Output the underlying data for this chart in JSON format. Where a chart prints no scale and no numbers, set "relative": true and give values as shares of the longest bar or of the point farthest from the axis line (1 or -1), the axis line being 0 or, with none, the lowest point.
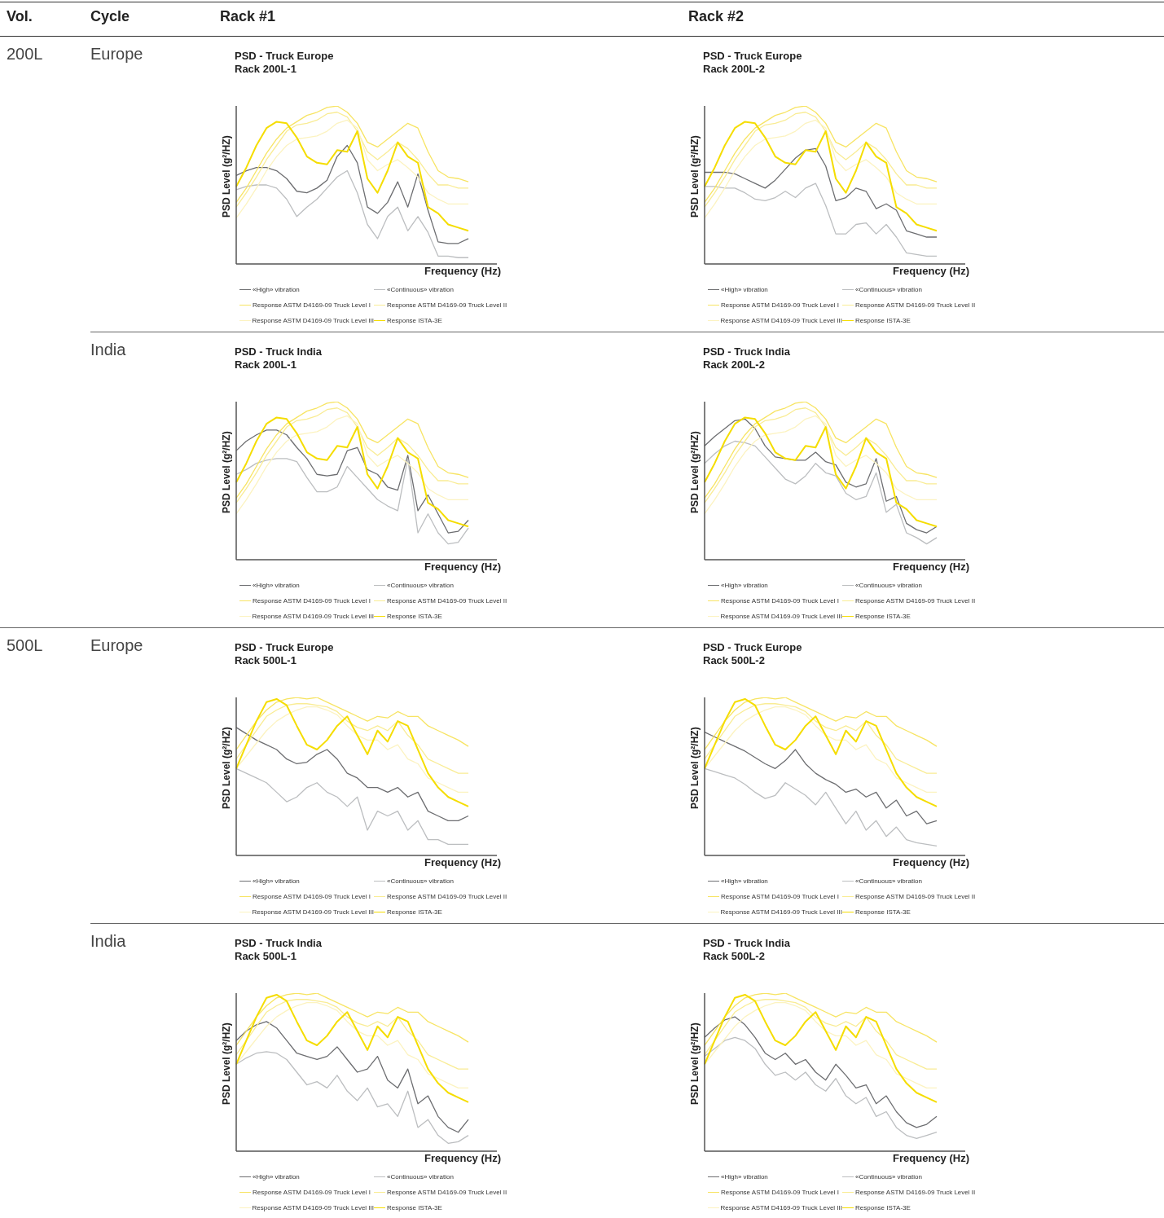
{
  "chart_data": [
    {
      "type": "other",
      "annotations": [
        "Vol.",
        "Cycle",
        "Rack #1",
        "Rack #2",
        "200L",
        "Europe",
        "India",
        "500L",
        "Europe",
        "India"
      ]
    },
    {
      "type": "line",
      "title": "PSD - Truck Europe",
      "subtitle": "Rack 200L-1",
      "xlabel": "Frequency (Hz)",
      "ylabel": "PSD Level (g²/HZ)",
      "relative": true,
      "legend": "bottom",
      "categories": [
        null,
        null,
        null,
        null,
        null,
        null,
        null,
        null,
        null,
        null,
        null,
        null,
        null,
        null,
        null,
        null,
        null,
        null,
        null,
        null,
        null,
        null,
        null,
        null
      ],
      "series": [
        {
          "name": "«High» vibration",
          "color": "#6d6e71",
          "values": [
            0.56,
            0.59,
            0.61,
            0.61,
            0.59,
            0.54,
            0.46,
            0.45,
            0.48,
            0.53,
            0.68,
            0.75,
            0.64,
            0.36,
            0.32,
            0.39,
            0.52,
            0.36,
            0.57,
            0.34,
            0.14,
            0.13,
            0.13,
            0.16
          ]
        },
        {
          "name": "«Continuous» vibration",
          "color": "#bcbec0",
          "values": [
            0.47,
            0.49,
            0.5,
            0.5,
            0.48,
            0.41,
            0.3,
            0.36,
            0.41,
            0.48,
            0.55,
            0.59,
            0.45,
            0.25,
            0.16,
            0.3,
            0.36,
            0.21,
            0.3,
            0.2,
            0.05,
            0.05,
            0.04,
            0.04
          ]
        },
        {
          "name": "Response ASTM D4169-09 Truck Level I",
          "color": "#f7e463",
          "values": [
            0.39,
            0.48,
            0.59,
            0.7,
            0.79,
            0.86,
            0.9,
            0.94,
            0.96,
            0.99,
            1,
            0.96,
            0.89,
            0.77,
            0.74,
            0.79,
            0.84,
            0.89,
            0.86,
            0.71,
            0.59,
            0.55,
            0.54,
            0.52
          ]
        },
        {
          "name": "Response ASTM D4169-09 Truck Level II",
          "color": "#f9ec94",
          "values": [
            0.36,
            0.45,
            0.55,
            0.66,
            0.75,
            0.84,
            0.88,
            0.89,
            0.91,
            0.95,
            0.96,
            0.93,
            0.84,
            0.71,
            0.66,
            0.71,
            0.77,
            0.73,
            0.66,
            0.57,
            0.5,
            0.5,
            0.48,
            0.48
          ]
        },
        {
          "name": "Response ASTM D4169-09 Truck Level III",
          "color": "#fcf3c0",
          "values": [
            0.29,
            0.38,
            0.48,
            0.59,
            0.68,
            0.75,
            0.79,
            0.8,
            0.81,
            0.84,
            0.89,
            0.91,
            0.86,
            0.66,
            0.59,
            0.63,
            0.66,
            0.61,
            0.55,
            0.45,
            0.41,
            0.38,
            0.38,
            0.38
          ]
        },
        {
          "name": "Response ISTA-3E",
          "color": "#f5dd00",
          "values": [
            0.49,
            0.61,
            0.75,
            0.86,
            0.9,
            0.89,
            0.8,
            0.68,
            0.64,
            0.63,
            0.72,
            0.71,
            0.84,
            0.54,
            0.45,
            0.59,
            0.77,
            0.68,
            0.64,
            0.36,
            0.32,
            0.25,
            0.23,
            0.21
          ]
        }
      ]
    },
    {
      "type": "line",
      "title": "PSD - Truck Europe",
      "subtitle": "Rack 200L-2",
      "xlabel": "Frequency (Hz)",
      "ylabel": "PSD Level (g²/HZ)",
      "relative": true,
      "legend": "bottom",
      "categories": [
        null,
        null,
        null,
        null,
        null,
        null,
        null,
        null,
        null,
        null,
        null,
        null,
        null,
        null,
        null,
        null,
        null,
        null,
        null,
        null,
        null,
        null,
        null,
        null
      ],
      "series": [
        {
          "name": "«High» vibration",
          "color": "#6d6e71",
          "values": [
            0.58,
            0.58,
            0.58,
            0.57,
            0.54,
            0.51,
            0.48,
            0.53,
            0.6,
            0.67,
            0.72,
            0.73,
            0.62,
            0.4,
            0.42,
            0.48,
            0.46,
            0.35,
            0.38,
            0.34,
            0.21,
            0.19,
            0.17,
            0.17
          ]
        },
        {
          "name": "«Continuous» vibration",
          "color": "#bcbec0",
          "values": [
            0.49,
            0.49,
            0.48,
            0.48,
            0.45,
            0.41,
            0.4,
            0.42,
            0.46,
            0.42,
            0.48,
            0.51,
            0.37,
            0.19,
            0.19,
            0.25,
            0.26,
            0.19,
            0.25,
            0.17,
            0.07,
            0.06,
            0.05,
            0.05
          ]
        },
        {
          "name": "Response ASTM D4169-09 Truck Level I",
          "color": "#f7e463",
          "values": [
            0.39,
            0.48,
            0.59,
            0.7,
            0.79,
            0.86,
            0.9,
            0.94,
            0.96,
            0.99,
            1,
            0.96,
            0.89,
            0.77,
            0.74,
            0.79,
            0.84,
            0.89,
            0.86,
            0.71,
            0.59,
            0.55,
            0.54,
            0.52
          ]
        },
        {
          "name": "Response ASTM D4169-09 Truck Level II",
          "color": "#f9ec94",
          "values": [
            0.36,
            0.45,
            0.55,
            0.66,
            0.75,
            0.84,
            0.88,
            0.89,
            0.91,
            0.95,
            0.96,
            0.93,
            0.84,
            0.71,
            0.66,
            0.71,
            0.77,
            0.73,
            0.66,
            0.57,
            0.5,
            0.5,
            0.48,
            0.48
          ]
        },
        {
          "name": "Response ASTM D4169-09 Truck Level III",
          "color": "#fcf3c0",
          "values": [
            0.29,
            0.38,
            0.48,
            0.59,
            0.68,
            0.75,
            0.79,
            0.8,
            0.81,
            0.84,
            0.89,
            0.91,
            0.86,
            0.66,
            0.59,
            0.63,
            0.66,
            0.61,
            0.55,
            0.45,
            0.41,
            0.38,
            0.38,
            0.38
          ]
        },
        {
          "name": "Response ISTA-3E",
          "color": "#f5dd00",
          "values": [
            0.49,
            0.61,
            0.75,
            0.86,
            0.9,
            0.89,
            0.8,
            0.68,
            0.64,
            0.63,
            0.72,
            0.71,
            0.84,
            0.54,
            0.45,
            0.59,
            0.77,
            0.68,
            0.64,
            0.36,
            0.32,
            0.25,
            0.23,
            0.21
          ]
        }
      ]
    },
    {
      "type": "line",
      "title": "PSD - Truck India",
      "subtitle": "Rack 200L-1",
      "xlabel": "Frequency (Hz)",
      "ylabel": "PSD Level (g²/HZ)",
      "relative": true,
      "legend": "bottom",
      "categories": [
        null,
        null,
        null,
        null,
        null,
        null,
        null,
        null,
        null,
        null,
        null,
        null,
        null,
        null,
        null,
        null,
        null,
        null,
        null,
        null,
        null,
        null,
        null,
        null
      ],
      "series": [
        {
          "name": "«High» vibration",
          "color": "#6d6e71",
          "values": [
            0.69,
            0.75,
            0.79,
            0.82,
            0.82,
            0.79,
            0.71,
            0.64,
            0.54,
            0.53,
            0.54,
            0.69,
            0.71,
            0.57,
            0.54,
            0.46,
            0.44,
            0.66,
            0.31,
            0.41,
            0.29,
            0.17,
            0.18,
            0.25
          ]
        },
        {
          "name": "«Continuous» vibration",
          "color": "#bcbec0",
          "values": [
            0.54,
            0.57,
            0.61,
            0.63,
            0.64,
            0.64,
            0.62,
            0.52,
            0.43,
            0.43,
            0.46,
            0.59,
            0.52,
            0.45,
            0.38,
            0.34,
            0.31,
            0.64,
            0.17,
            0.29,
            0.17,
            0.1,
            0.11,
            0.2
          ]
        },
        {
          "name": "Response ASTM D4169-09 Truck Level I",
          "color": "#f7e463",
          "values": [
            0.39,
            0.48,
            0.59,
            0.7,
            0.79,
            0.86,
            0.9,
            0.94,
            0.96,
            0.99,
            1,
            0.96,
            0.89,
            0.77,
            0.74,
            0.79,
            0.84,
            0.89,
            0.86,
            0.71,
            0.59,
            0.55,
            0.54,
            0.52
          ]
        },
        {
          "name": "Response ASTM D4169-09 Truck Level II",
          "color": "#f9ec94",
          "values": [
            0.36,
            0.45,
            0.55,
            0.66,
            0.75,
            0.84,
            0.88,
            0.89,
            0.91,
            0.95,
            0.96,
            0.93,
            0.84,
            0.71,
            0.66,
            0.71,
            0.77,
            0.73,
            0.66,
            0.57,
            0.5,
            0.5,
            0.48,
            0.48
          ]
        },
        {
          "name": "Response ASTM D4169-09 Truck Level III",
          "color": "#fcf3c0",
          "values": [
            0.29,
            0.38,
            0.48,
            0.59,
            0.68,
            0.75,
            0.79,
            0.8,
            0.81,
            0.84,
            0.89,
            0.91,
            0.86,
            0.66,
            0.59,
            0.63,
            0.66,
            0.61,
            0.55,
            0.45,
            0.41,
            0.38,
            0.38,
            0.38
          ]
        },
        {
          "name": "Response ISTA-3E",
          "color": "#f5dd00",
          "values": [
            0.49,
            0.61,
            0.75,
            0.86,
            0.9,
            0.89,
            0.8,
            0.68,
            0.64,
            0.63,
            0.72,
            0.71,
            0.84,
            0.54,
            0.45,
            0.59,
            0.77,
            0.68,
            0.64,
            0.36,
            0.32,
            0.25,
            0.23,
            0.21
          ]
        }
      ]
    },
    {
      "type": "line",
      "title": "PSD - Truck India",
      "subtitle": "Rack 200L-2",
      "xlabel": "Frequency (Hz)",
      "ylabel": "PSD Level (g²/HZ)",
      "relative": true,
      "legend": "bottom",
      "categories": [
        null,
        null,
        null,
        null,
        null,
        null,
        null,
        null,
        null,
        null,
        null,
        null,
        null,
        null,
        null,
        null,
        null,
        null,
        null,
        null,
        null,
        null,
        null,
        null
      ],
      "series": [
        {
          "name": "«High» vibration",
          "color": "#6d6e71",
          "values": [
            0.72,
            0.78,
            0.83,
            0.88,
            0.89,
            0.83,
            0.72,
            0.65,
            0.64,
            0.63,
            0.63,
            0.68,
            0.62,
            0.6,
            0.49,
            0.46,
            0.48,
            0.64,
            0.37,
            0.4,
            0.23,
            0.19,
            0.17,
            0.21
          ]
        },
        {
          "name": "«Continuous» vibration",
          "color": "#bcbec0",
          "values": [
            0.61,
            0.67,
            0.72,
            0.75,
            0.74,
            0.72,
            0.65,
            0.58,
            0.51,
            0.48,
            0.53,
            0.61,
            0.55,
            0.53,
            0.42,
            0.38,
            0.4,
            0.55,
            0.3,
            0.35,
            0.17,
            0.14,
            0.1,
            0.14
          ]
        },
        {
          "name": "Response ASTM D4169-09 Truck Level I",
          "color": "#f7e463",
          "values": [
            0.39,
            0.48,
            0.59,
            0.7,
            0.79,
            0.86,
            0.9,
            0.94,
            0.96,
            0.99,
            1,
            0.96,
            0.89,
            0.77,
            0.74,
            0.79,
            0.84,
            0.89,
            0.86,
            0.71,
            0.59,
            0.55,
            0.54,
            0.52
          ]
        },
        {
          "name": "Response ASTM D4169-09 Truck Level II",
          "color": "#f9ec94",
          "values": [
            0.36,
            0.45,
            0.55,
            0.66,
            0.75,
            0.84,
            0.88,
            0.89,
            0.91,
            0.95,
            0.96,
            0.93,
            0.84,
            0.71,
            0.66,
            0.71,
            0.77,
            0.73,
            0.66,
            0.57,
            0.5,
            0.5,
            0.48,
            0.48
          ]
        },
        {
          "name": "Response ASTM D4169-09 Truck Level III",
          "color": "#fcf3c0",
          "values": [
            0.29,
            0.38,
            0.48,
            0.59,
            0.68,
            0.75,
            0.79,
            0.8,
            0.81,
            0.84,
            0.89,
            0.91,
            0.86,
            0.66,
            0.59,
            0.63,
            0.66,
            0.61,
            0.55,
            0.45,
            0.41,
            0.38,
            0.38,
            0.38
          ]
        },
        {
          "name": "Response ISTA-3E",
          "color": "#f5dd00",
          "values": [
            0.49,
            0.61,
            0.75,
            0.86,
            0.9,
            0.89,
            0.8,
            0.68,
            0.64,
            0.63,
            0.72,
            0.71,
            0.84,
            0.54,
            0.45,
            0.59,
            0.77,
            0.68,
            0.64,
            0.36,
            0.32,
            0.25,
            0.23,
            0.21
          ]
        }
      ]
    },
    {
      "type": "line",
      "title": "PSD - Truck Europe",
      "subtitle": "Rack 500L-1",
      "xlabel": "Frequency (Hz)",
      "ylabel": "PSD Level (g²/HZ)",
      "relative": true,
      "legend": "bottom",
      "categories": [
        null,
        null,
        null,
        null,
        null,
        null,
        null,
        null,
        null,
        null,
        null,
        null,
        null,
        null,
        null,
        null,
        null,
        null,
        null,
        null,
        null,
        null,
        null,
        null
      ],
      "series": [
        {
          "name": "«High» vibration",
          "color": "#6d6e71",
          "values": [
            0.81,
            0.77,
            0.73,
            0.7,
            0.67,
            0.61,
            0.58,
            0.59,
            0.64,
            0.67,
            0.61,
            0.52,
            0.49,
            0.43,
            0.43,
            0.4,
            0.43,
            0.37,
            0.4,
            0.28,
            0.25,
            0.22,
            0.22,
            0.25
          ]
        },
        {
          "name": "«Continuous» vibration",
          "color": "#bcbec0",
          "values": [
            0.55,
            0.52,
            0.49,
            0.46,
            0.4,
            0.34,
            0.37,
            0.43,
            0.46,
            0.4,
            0.37,
            0.31,
            0.37,
            0.16,
            0.28,
            0.25,
            0.28,
            0.16,
            0.22,
            0.1,
            0.1,
            0.07,
            0.07,
            0.07
          ]
        },
        {
          "name": "Response ASTM D4169-09 Truck Level I",
          "color": "#f7e463",
          "values": [
            0.67,
            0.76,
            0.85,
            0.92,
            0.97,
            0.99,
            1,
            0.99,
            1,
            0.97,
            0.94,
            0.91,
            0.88,
            0.85,
            0.88,
            0.87,
            0.91,
            0.88,
            0.88,
            0.82,
            0.79,
            0.76,
            0.73,
            0.69
          ]
        },
        {
          "name": "Response ASTM D4169-09 Truck Level II",
          "color": "#f9ec94",
          "values": [
            0.61,
            0.7,
            0.79,
            0.88,
            0.92,
            0.95,
            0.96,
            0.96,
            0.95,
            0.94,
            0.91,
            0.85,
            0.81,
            0.79,
            0.82,
            0.79,
            0.85,
            0.76,
            0.7,
            0.61,
            0.58,
            0.55,
            0.52,
            0.52
          ]
        },
        {
          "name": "Response ASTM D4169-09 Truck Level III",
          "color": "#fcf3c0",
          "values": [
            0.55,
            0.63,
            0.71,
            0.79,
            0.85,
            0.89,
            0.92,
            0.94,
            0.94,
            0.92,
            0.89,
            0.82,
            0.76,
            0.73,
            0.73,
            0.67,
            0.7,
            0.61,
            0.58,
            0.49,
            0.46,
            0.43,
            0.4,
            0.4
          ]
        },
        {
          "name": "Response ISTA-3E",
          "color": "#f5dd00",
          "values": [
            0.55,
            0.7,
            0.85,
            0.97,
            0.99,
            0.95,
            0.82,
            0.7,
            0.67,
            0.73,
            0.82,
            0.88,
            0.76,
            0.64,
            0.79,
            0.72,
            0.85,
            0.82,
            0.67,
            0.52,
            0.43,
            0.37,
            0.34,
            0.31
          ]
        }
      ]
    },
    {
      "type": "line",
      "title": "PSD - Truck Europe",
      "subtitle": "Rack 500L-2",
      "xlabel": "Frequency (Hz)",
      "ylabel": "PSD Level (g²/HZ)",
      "relative": true,
      "legend": "bottom",
      "categories": [
        null,
        null,
        null,
        null,
        null,
        null,
        null,
        null,
        null,
        null,
        null,
        null,
        null,
        null,
        null,
        null,
        null,
        null,
        null,
        null,
        null,
        null,
        null,
        null
      ],
      "series": [
        {
          "name": "«High» vibration",
          "color": "#6d6e71",
          "values": [
            0.78,
            0.75,
            0.72,
            0.69,
            0.66,
            0.62,
            0.58,
            0.55,
            0.6,
            0.67,
            0.58,
            0.52,
            0.48,
            0.45,
            0.4,
            0.42,
            0.37,
            0.4,
            0.3,
            0.35,
            0.25,
            0.28,
            0.2,
            0.22
          ]
        },
        {
          "name": "«Continuous» vibration",
          "color": "#bcbec0",
          "values": [
            0.55,
            0.53,
            0.51,
            0.49,
            0.45,
            0.4,
            0.36,
            0.38,
            0.46,
            0.42,
            0.38,
            0.32,
            0.4,
            0.3,
            0.2,
            0.28,
            0.16,
            0.22,
            0.12,
            0.18,
            0.1,
            0.08,
            0.07,
            0.06
          ]
        },
        {
          "name": "Response ASTM D4169-09 Truck Level I",
          "color": "#f7e463",
          "values": [
            0.67,
            0.76,
            0.85,
            0.92,
            0.97,
            0.99,
            1,
            0.99,
            1,
            0.97,
            0.94,
            0.91,
            0.88,
            0.85,
            0.88,
            0.87,
            0.91,
            0.88,
            0.88,
            0.82,
            0.79,
            0.76,
            0.73,
            0.69
          ]
        },
        {
          "name": "Response ASTM D4169-09 Truck Level II",
          "color": "#f9ec94",
          "values": [
            0.61,
            0.7,
            0.79,
            0.88,
            0.92,
            0.95,
            0.96,
            0.96,
            0.95,
            0.94,
            0.91,
            0.85,
            0.81,
            0.79,
            0.82,
            0.79,
            0.85,
            0.76,
            0.7,
            0.61,
            0.58,
            0.55,
            0.52,
            0.52
          ]
        },
        {
          "name": "Response ASTM D4169-09 Truck Level III",
          "color": "#fcf3c0",
          "values": [
            0.55,
            0.63,
            0.71,
            0.79,
            0.85,
            0.89,
            0.92,
            0.94,
            0.94,
            0.92,
            0.89,
            0.82,
            0.76,
            0.73,
            0.73,
            0.67,
            0.7,
            0.61,
            0.58,
            0.49,
            0.46,
            0.43,
            0.4,
            0.4
          ]
        },
        {
          "name": "Response ISTA-3E",
          "color": "#f5dd00",
          "values": [
            0.55,
            0.7,
            0.85,
            0.97,
            0.99,
            0.95,
            0.82,
            0.7,
            0.67,
            0.73,
            0.82,
            0.88,
            0.76,
            0.64,
            0.79,
            0.72,
            0.85,
            0.82,
            0.67,
            0.52,
            0.43,
            0.37,
            0.34,
            0.31
          ]
        }
      ]
    },
    {
      "type": "line",
      "title": "PSD - Truck India",
      "subtitle": "Rack 500L-1",
      "xlabel": "Frequency (Hz)",
      "ylabel": "PSD Level (g²/HZ)",
      "relative": true,
      "legend": "bottom",
      "categories": [
        null,
        null,
        null,
        null,
        null,
        null,
        null,
        null,
        null,
        null,
        null,
        null,
        null,
        null,
        null,
        null,
        null,
        null,
        null,
        null,
        null,
        null,
        null,
        null
      ],
      "series": [
        {
          "name": "«High» vibration",
          "color": "#6d6e71",
          "values": [
            0.7,
            0.76,
            0.8,
            0.82,
            0.78,
            0.7,
            0.62,
            0.6,
            0.58,
            0.6,
            0.66,
            0.58,
            0.5,
            0.52,
            0.6,
            0.45,
            0.4,
            0.52,
            0.3,
            0.35,
            0.22,
            0.15,
            0.12,
            0.2
          ]
        },
        {
          "name": "«Continuous» vibration",
          "color": "#bcbec0",
          "values": [
            0.55,
            0.59,
            0.62,
            0.63,
            0.62,
            0.58,
            0.5,
            0.42,
            0.44,
            0.4,
            0.48,
            0.38,
            0.32,
            0.4,
            0.28,
            0.3,
            0.22,
            0.38,
            0.15,
            0.2,
            0.1,
            0.05,
            0.06,
            0.1
          ]
        },
        {
          "name": "Response ASTM D4169-09 Truck Level I",
          "color": "#f7e463",
          "values": [
            0.67,
            0.76,
            0.85,
            0.92,
            0.97,
            0.99,
            1,
            0.99,
            1,
            0.97,
            0.94,
            0.91,
            0.88,
            0.85,
            0.88,
            0.87,
            0.91,
            0.88,
            0.88,
            0.82,
            0.79,
            0.76,
            0.73,
            0.69
          ]
        },
        {
          "name": "Response ASTM D4169-09 Truck Level II",
          "color": "#f9ec94",
          "values": [
            0.61,
            0.7,
            0.79,
            0.88,
            0.92,
            0.95,
            0.96,
            0.96,
            0.95,
            0.94,
            0.91,
            0.85,
            0.81,
            0.79,
            0.82,
            0.79,
            0.85,
            0.76,
            0.7,
            0.61,
            0.58,
            0.55,
            0.52,
            0.52
          ]
        },
        {
          "name": "Response ASTM D4169-09 Truck Level III",
          "color": "#fcf3c0",
          "values": [
            0.55,
            0.63,
            0.71,
            0.79,
            0.85,
            0.89,
            0.92,
            0.94,
            0.94,
            0.92,
            0.89,
            0.82,
            0.76,
            0.73,
            0.73,
            0.67,
            0.7,
            0.61,
            0.58,
            0.49,
            0.46,
            0.43,
            0.4,
            0.4
          ]
        },
        {
          "name": "Response ISTA-3E",
          "color": "#f5dd00",
          "values": [
            0.55,
            0.7,
            0.85,
            0.97,
            0.99,
            0.95,
            0.82,
            0.7,
            0.67,
            0.73,
            0.82,
            0.88,
            0.76,
            0.64,
            0.79,
            0.72,
            0.85,
            0.82,
            0.67,
            0.52,
            0.43,
            0.37,
            0.34,
            0.31
          ]
        }
      ]
    },
    {
      "type": "line",
      "title": "PSD - Truck India",
      "subtitle": "Rack 500L-2",
      "xlabel": "Frequency (Hz)",
      "ylabel": "PSD Level (g²/HZ)",
      "relative": true,
      "legend": "bottom",
      "categories": [
        null,
        null,
        null,
        null,
        null,
        null,
        null,
        null,
        null,
        null,
        null,
        null,
        null,
        null,
        null,
        null,
        null,
        null,
        null,
        null,
        null,
        null,
        null,
        null
      ],
      "series": [
        {
          "name": "«High» vibration",
          "color": "#6d6e71",
          "values": [
            0.72,
            0.78,
            0.83,
            0.85,
            0.8,
            0.72,
            0.62,
            0.58,
            0.62,
            0.55,
            0.58,
            0.5,
            0.45,
            0.55,
            0.48,
            0.4,
            0.42,
            0.3,
            0.35,
            0.25,
            0.18,
            0.15,
            0.17,
            0.22
          ]
        },
        {
          "name": "«Continuous» vibration",
          "color": "#bcbec0",
          "values": [
            0.6,
            0.65,
            0.7,
            0.72,
            0.7,
            0.65,
            0.55,
            0.48,
            0.5,
            0.45,
            0.5,
            0.42,
            0.38,
            0.46,
            0.35,
            0.3,
            0.34,
            0.22,
            0.25,
            0.15,
            0.1,
            0.08,
            0.1,
            0.12
          ]
        },
        {
          "name": "Response ASTM D4169-09 Truck Level I",
          "color": "#f7e463",
          "values": [
            0.67,
            0.76,
            0.85,
            0.92,
            0.97,
            0.99,
            1,
            0.99,
            1,
            0.97,
            0.94,
            0.91,
            0.88,
            0.85,
            0.88,
            0.87,
            0.91,
            0.88,
            0.88,
            0.82,
            0.79,
            0.76,
            0.73,
            0.69
          ]
        },
        {
          "name": "Response ASTM D4169-09 Truck Level II",
          "color": "#f9ec94",
          "values": [
            0.61,
            0.7,
            0.79,
            0.88,
            0.92,
            0.95,
            0.96,
            0.96,
            0.95,
            0.94,
            0.91,
            0.85,
            0.81,
            0.79,
            0.82,
            0.79,
            0.85,
            0.76,
            0.7,
            0.61,
            0.58,
            0.55,
            0.52,
            0.52
          ]
        },
        {
          "name": "Response ASTM D4169-09 Truck Level III",
          "color": "#fcf3c0",
          "values": [
            0.55,
            0.63,
            0.71,
            0.79,
            0.85,
            0.89,
            0.92,
            0.94,
            0.94,
            0.92,
            0.89,
            0.82,
            0.76,
            0.73,
            0.73,
            0.67,
            0.7,
            0.61,
            0.58,
            0.49,
            0.46,
            0.43,
            0.4,
            0.4
          ]
        },
        {
          "name": "Response ISTA-3E",
          "color": "#f5dd00",
          "values": [
            0.55,
            0.7,
            0.85,
            0.97,
            0.99,
            0.95,
            0.82,
            0.7,
            0.67,
            0.73,
            0.82,
            0.88,
            0.76,
            0.64,
            0.79,
            0.72,
            0.85,
            0.82,
            0.67,
            0.52,
            0.43,
            0.37,
            0.34,
            0.31
          ]
        }
      ]
    }
  ]
}
